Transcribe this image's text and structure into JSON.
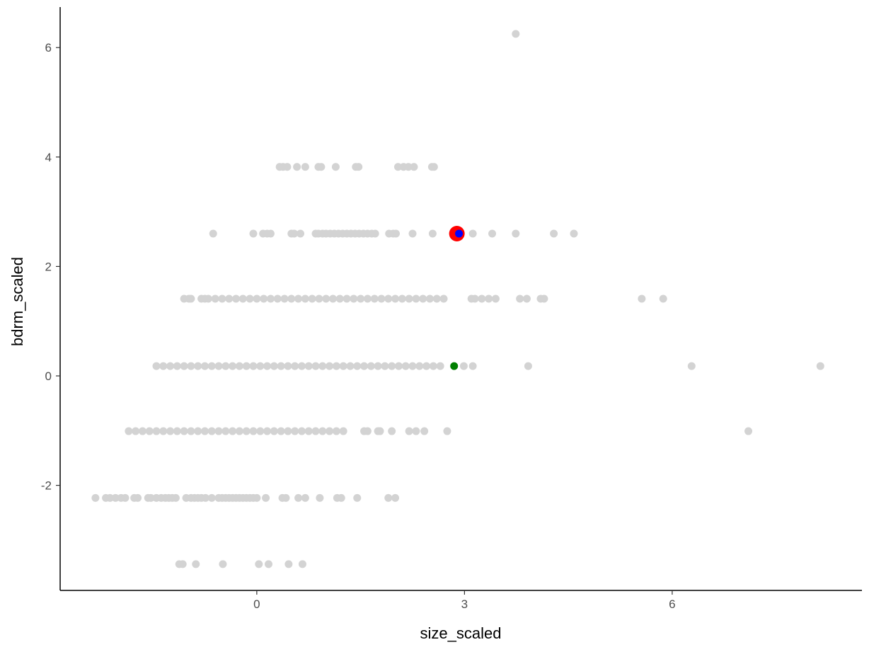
{
  "chart_data": {
    "type": "scatter",
    "title": "",
    "xlabel": "size_scaled",
    "ylabel": "bdrm_scaled",
    "xlim": [
      -2.84,
      8.74
    ],
    "ylim": [
      -3.92,
      6.74
    ],
    "xticks": [
      0,
      3,
      6
    ],
    "yticks": [
      -2,
      0,
      2,
      4,
      6
    ],
    "grid": false,
    "legend": "none",
    "series": [
      {
        "color": "#d3d3d3",
        "size": "small",
        "rows": [
          {
            "y": 6.25,
            "x": [
              3.74
            ]
          },
          {
            "y": 3.82,
            "x": [
              0.33,
              0.38,
              0.44,
              0.58,
              0.7,
              0.89,
              0.93,
              1.14,
              1.43,
              1.47,
              2.04,
              2.12,
              2.19,
              2.27,
              2.53,
              2.56
            ]
          },
          {
            "y": 2.6,
            "x": [
              -0.63,
              -0.05,
              0.09,
              0.15,
              0.2,
              0.5,
              0.54,
              0.63,
              0.85,
              0.89,
              0.95,
              1.0,
              1.06,
              1.12,
              1.18,
              1.24,
              1.3,
              1.36,
              1.42,
              1.48,
              1.54,
              1.6,
              1.66,
              1.71,
              1.91,
              1.97,
              2.01,
              2.25,
              2.54,
              3.12,
              3.4,
              3.74,
              4.29,
              4.58
            ]
          },
          {
            "y": 1.41,
            "x": [
              -1.05,
              -0.98,
              -0.95,
              -0.8,
              -0.75,
              -0.7,
              -0.6,
              -0.5,
              -0.4,
              -0.3,
              -0.2,
              -0.1,
              0.0,
              0.1,
              0.2,
              0.3,
              0.4,
              0.5,
              0.6,
              0.7,
              0.8,
              0.9,
              1.0,
              1.1,
              1.2,
              1.3,
              1.4,
              1.5,
              1.6,
              1.7,
              1.8,
              1.9,
              2.0,
              2.1,
              2.2,
              2.3,
              2.4,
              2.5,
              2.6,
              2.7,
              3.1,
              3.15,
              3.25,
              3.35,
              3.45,
              3.8,
              3.9,
              4.1,
              4.15,
              5.56,
              5.87
            ]
          },
          {
            "y": 0.18,
            "x": [
              -1.45,
              -1.35,
              -1.25,
              -1.15,
              -1.05,
              -0.95,
              -0.85,
              -0.75,
              -0.65,
              -0.55,
              -0.45,
              -0.35,
              -0.25,
              -0.15,
              -0.05,
              0.05,
              0.15,
              0.25,
              0.35,
              0.45,
              0.55,
              0.65,
              0.75,
              0.85,
              0.95,
              1.05,
              1.15,
              1.25,
              1.35,
              1.45,
              1.55,
              1.65,
              1.75,
              1.85,
              1.95,
              2.05,
              2.15,
              2.25,
              2.35,
              2.45,
              2.55,
              2.65,
              2.99,
              3.12,
              3.92,
              6.28,
              8.14
            ]
          },
          {
            "y": -1.01,
            "x": [
              -1.85,
              -1.75,
              -1.65,
              -1.55,
              -1.45,
              -1.35,
              -1.25,
              -1.15,
              -1.05,
              -0.95,
              -0.85,
              -0.75,
              -0.65,
              -0.55,
              -0.45,
              -0.35,
              -0.25,
              -0.15,
              -0.05,
              0.05,
              0.15,
              0.25,
              0.35,
              0.45,
              0.55,
              0.65,
              0.75,
              0.85,
              0.95,
              1.05,
              1.15,
              1.25,
              1.55,
              1.6,
              1.75,
              1.78,
              1.95,
              2.2,
              2.3,
              2.42,
              2.75,
              7.1
            ]
          },
          {
            "y": -2.23,
            "x": [
              -2.33,
              -2.18,
              -2.12,
              -2.04,
              -1.96,
              -1.9,
              -1.77,
              -1.72,
              -1.57,
              -1.53,
              -1.45,
              -1.38,
              -1.32,
              -1.27,
              -1.22,
              -1.17,
              -1.02,
              -0.95,
              -0.9,
              -0.85,
              -0.8,
              -0.74,
              -0.65,
              -0.55,
              -0.5,
              -0.45,
              -0.4,
              -0.35,
              -0.3,
              -0.25,
              -0.2,
              -0.15,
              -0.1,
              -0.05,
              0.0,
              0.13,
              0.37,
              0.42,
              0.6,
              0.7,
              0.91,
              1.16,
              1.22,
              1.45,
              1.9,
              2.0
            ]
          },
          {
            "y": -3.44,
            "x": [
              -1.12,
              -1.07,
              -0.88,
              -0.49,
              0.03,
              0.17,
              0.46,
              0.66
            ]
          }
        ]
      },
      {
        "color": "#ff0000",
        "size": "large",
        "rows": [
          {
            "y": 2.6,
            "x": [
              2.89
            ]
          }
        ]
      },
      {
        "color": "#0000ff",
        "size": "small",
        "rows": [
          {
            "y": 2.6,
            "x": [
              2.92
            ]
          }
        ]
      },
      {
        "color": "#007f00",
        "size": "small",
        "rows": [
          {
            "y": 0.18,
            "x": [
              2.85
            ]
          }
        ]
      }
    ]
  }
}
